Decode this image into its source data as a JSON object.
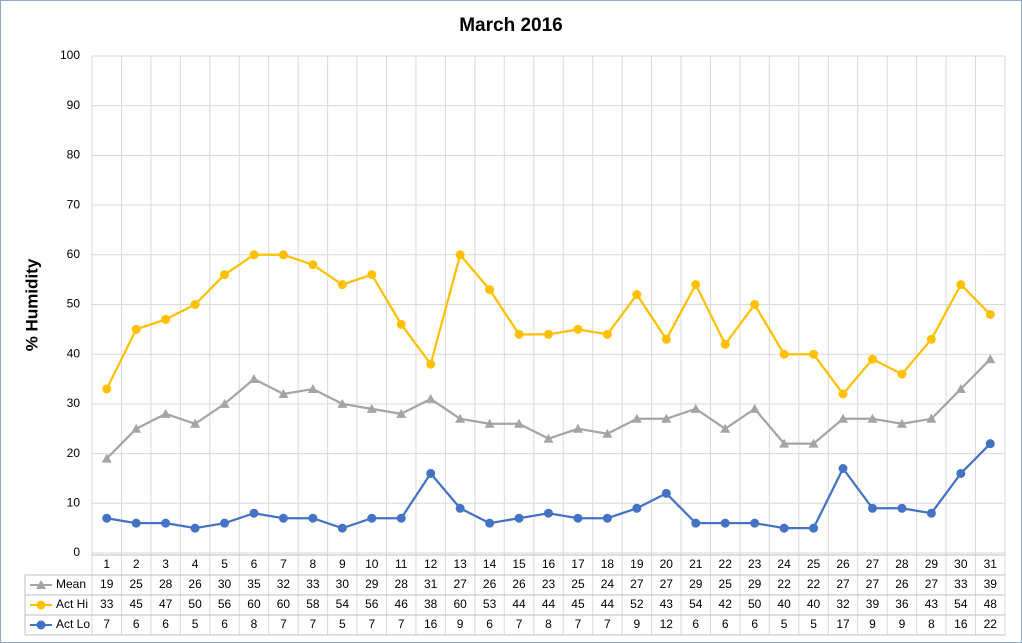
{
  "chart_data": {
    "type": "line",
    "title": "March 2016",
    "y_label": "% Humidity",
    "categories": [
      "1",
      "2",
      "3",
      "4",
      "5",
      "6",
      "7",
      "8",
      "9",
      "10",
      "11",
      "12",
      "13",
      "14",
      "15",
      "16",
      "17",
      "18",
      "19",
      "20",
      "21",
      "22",
      "23",
      "24",
      "25",
      "26",
      "27",
      "28",
      "29",
      "30",
      "31"
    ],
    "series": [
      {
        "name": "Mean",
        "color": "#a5a5a5",
        "marker": "triangle",
        "values": [
          19,
          25,
          28,
          26,
          30,
          35,
          32,
          33,
          30,
          29,
          28,
          31,
          27,
          26,
          26,
          23,
          25,
          24,
          27,
          27,
          29,
          25,
          29,
          22,
          22,
          27,
          27,
          26,
          27,
          33,
          39
        ]
      },
      {
        "name": "Act Hi",
        "color": "#ffc000",
        "marker": "circle",
        "values": [
          33,
          45,
          47,
          50,
          56,
          60,
          60,
          58,
          54,
          56,
          46,
          38,
          60,
          53,
          44,
          44,
          45,
          44,
          52,
          43,
          54,
          42,
          50,
          40,
          40,
          32,
          39,
          36,
          43,
          54,
          48
        ]
      },
      {
        "name": "Act Lo",
        "color": "#4472c4",
        "marker": "circle",
        "values": [
          7,
          6,
          6,
          5,
          6,
          8,
          7,
          7,
          5,
          7,
          7,
          16,
          9,
          6,
          7,
          8,
          7,
          7,
          9,
          12,
          6,
          6,
          6,
          5,
          5,
          17,
          9,
          9,
          8,
          16,
          22
        ]
      }
    ],
    "ylim": [
      0,
      100
    ],
    "yticks": [
      0,
      10,
      20,
      30,
      40,
      50,
      60,
      70,
      80,
      90,
      100
    ],
    "grid": true
  }
}
